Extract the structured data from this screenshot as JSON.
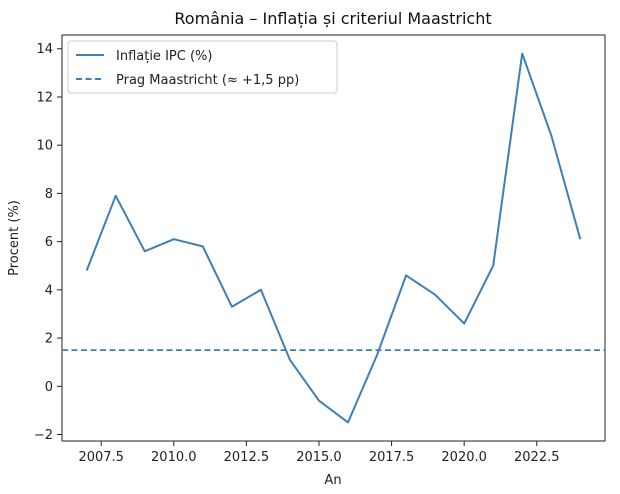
{
  "chart_data": {
    "type": "line",
    "title": "România – Inflația și criteriul Maastricht",
    "xlabel": "An",
    "ylabel": "Procent (%)",
    "x": [
      2007,
      2008,
      2009,
      2010,
      2011,
      2012,
      2013,
      2014,
      2015,
      2016,
      2017,
      2018,
      2019,
      2020,
      2021,
      2022,
      2023,
      2024
    ],
    "series": [
      {
        "name": "Inflație IPC (%)",
        "values": [
          4.8,
          7.9,
          5.6,
          6.1,
          5.8,
          3.3,
          4.0,
          1.1,
          -0.6,
          -1.5,
          1.3,
          4.6,
          3.8,
          2.6,
          5.0,
          13.8,
          10.4,
          6.1
        ],
        "color": "#3f7fb5",
        "style": "solid"
      }
    ],
    "reference_line": {
      "name": "Prag Maastricht (≈ +1,5 pp)",
      "value": 1.5,
      "color": "#3f7fb5",
      "style": "dashed"
    },
    "xlim": [
      2006.15,
      2024.85
    ],
    "ylim": [
      -2.27,
      14.57
    ],
    "xticks": [
      2007.5,
      2010.0,
      2012.5,
      2015.0,
      2017.5,
      2020.0,
      2022.5
    ],
    "xtick_labels": [
      "2007.5",
      "2010.0",
      "2012.5",
      "2015.0",
      "2017.5",
      "2020.0",
      "2022.5"
    ],
    "yticks": [
      -2,
      0,
      2,
      4,
      6,
      8,
      10,
      12,
      14
    ],
    "ytick_labels": [
      "−2",
      "0",
      "2",
      "4",
      "6",
      "8",
      "10",
      "12",
      "14"
    ],
    "grid": false,
    "legend_position": "top-left"
  }
}
